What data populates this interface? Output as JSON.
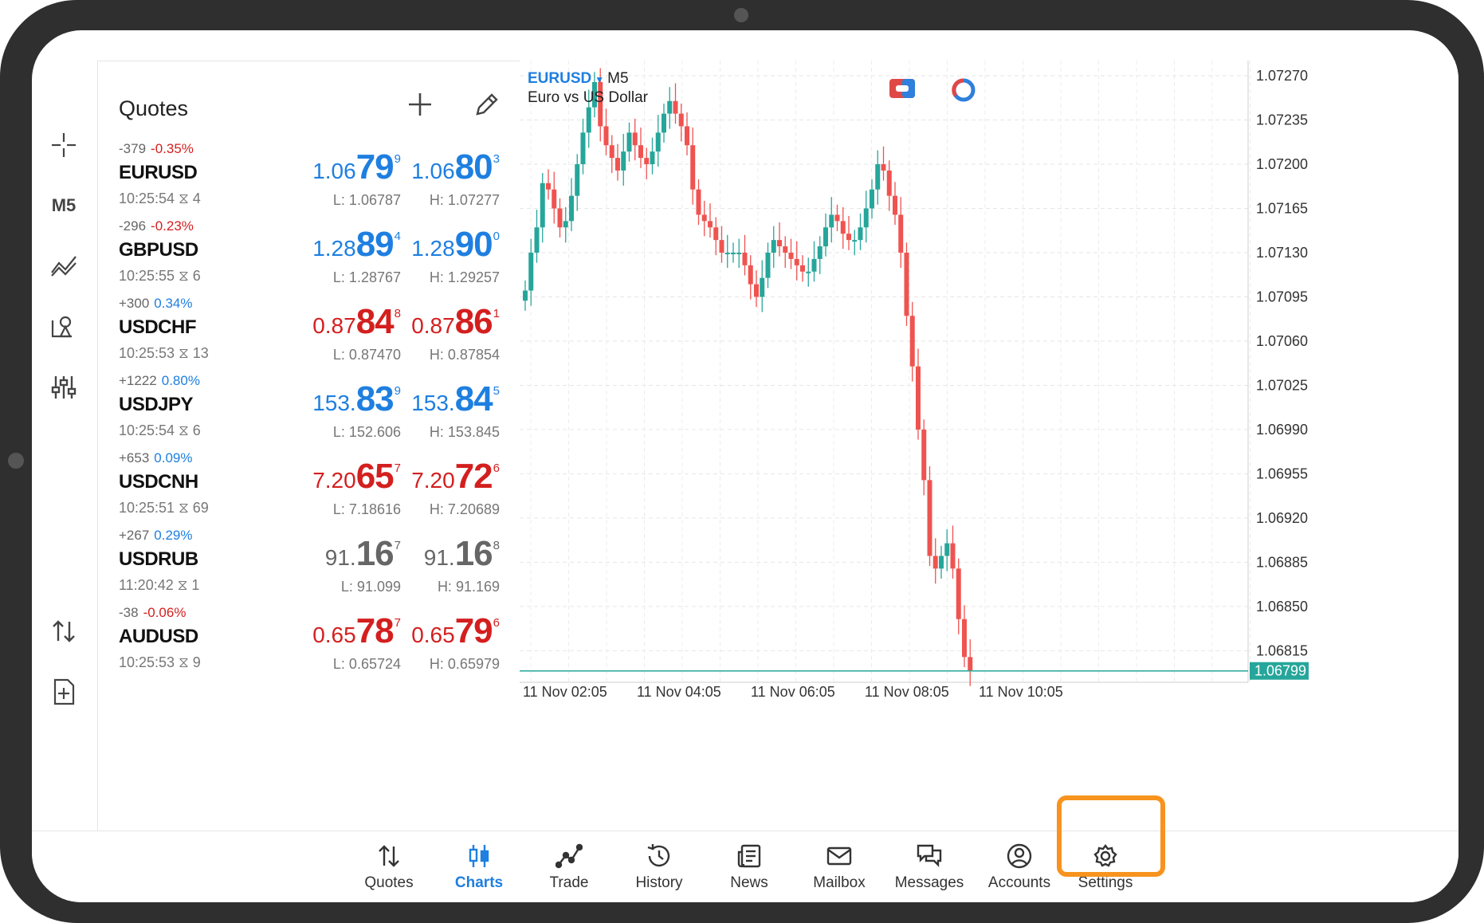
{
  "left_toolbar": {
    "timeframe": "M5"
  },
  "quotes": {
    "title": "Quotes",
    "rows": [
      {
        "change": "-379",
        "pct": "-0.35%",
        "pct_color": "red",
        "symbol": "EURUSD",
        "time": "10:25:54",
        "spread": "4",
        "bid_small": "1.06",
        "bid_big": "79",
        "bid_sup": "9",
        "ask_small": "1.06",
        "ask_big": "80",
        "ask_sup": "3",
        "color": "blue",
        "low": "L: 1.06787",
        "high": "H: 1.07277"
      },
      {
        "change": "-296",
        "pct": "-0.23%",
        "pct_color": "red",
        "symbol": "GBPUSD",
        "time": "10:25:55",
        "spread": "6",
        "bid_small": "1.28",
        "bid_big": "89",
        "bid_sup": "4",
        "ask_small": "1.28",
        "ask_big": "90",
        "ask_sup": "0",
        "color": "blue",
        "low": "L: 1.28767",
        "high": "H: 1.29257"
      },
      {
        "change": "+300",
        "pct": "0.34%",
        "pct_color": "blue",
        "symbol": "USDCHF",
        "time": "10:25:53",
        "spread": "13",
        "bid_small": "0.87",
        "bid_big": "84",
        "bid_sup": "8",
        "ask_small": "0.87",
        "ask_big": "86",
        "ask_sup": "1",
        "color": "red",
        "low": "L: 0.87470",
        "high": "H: 0.87854"
      },
      {
        "change": "+1222",
        "pct": "0.80%",
        "pct_color": "blue",
        "symbol": "USDJPY",
        "time": "10:25:54",
        "spread": "6",
        "bid_small": "153.",
        "bid_big": "83",
        "bid_sup": "9",
        "ask_small": "153.",
        "ask_big": "84",
        "ask_sup": "5",
        "color": "blue",
        "low": "L: 152.606",
        "high": "H: 153.845"
      },
      {
        "change": "+653",
        "pct": "0.09%",
        "pct_color": "blue",
        "symbol": "USDCNH",
        "time": "10:25:51",
        "spread": "69",
        "bid_small": "7.20",
        "bid_big": "65",
        "bid_sup": "7",
        "ask_small": "7.20",
        "ask_big": "72",
        "ask_sup": "6",
        "color": "red",
        "low": "L: 7.18616",
        "high": "H: 7.20689"
      },
      {
        "change": "+267",
        "pct": "0.29%",
        "pct_color": "blue",
        "symbol": "USDRUB",
        "time": "11:20:42",
        "spread": "1",
        "bid_small": "91.",
        "bid_big": "16",
        "bid_sup": "7",
        "ask_small": "91.",
        "ask_big": "16",
        "ask_sup": "8",
        "color": "gray",
        "low": "L: 91.099",
        "high": "H: 91.169"
      },
      {
        "change": "-38",
        "pct": "-0.06%",
        "pct_color": "red",
        "symbol": "AUDUSD",
        "time": "10:25:53",
        "spread": "9",
        "bid_small": "0.65",
        "bid_big": "78",
        "bid_sup": "7",
        "ask_small": "0.65",
        "ask_big": "79",
        "ask_sup": "6",
        "color": "red",
        "low": "L: 0.65724",
        "high": "H: 0.65979"
      }
    ]
  },
  "chart": {
    "symbol": "EURUSD",
    "timeframe": "M5",
    "description": "Euro vs US Dollar",
    "price_labels": [
      "1.07270",
      "1.07235",
      "1.07200",
      "1.07165",
      "1.07130",
      "1.07095",
      "1.07060",
      "1.07025",
      "1.06990",
      "1.06955",
      "1.06920",
      "1.06885",
      "1.06850",
      "1.06815"
    ],
    "current_price": "1.06799",
    "time_labels": [
      "11 Nov 02:05",
      "11 Nov 04:05",
      "11 Nov 06:05",
      "11 Nov 08:05",
      "11 Nov 10:05"
    ],
    "colors": {
      "bull": "#26a69a",
      "bear": "#ef5350",
      "price_line": "#26a69a"
    }
  },
  "chart_data": {
    "type": "candlestick",
    "symbol": "EURUSD",
    "timeframe": "M5",
    "ylim": [
      1.0679,
      1.07282
    ],
    "x_ticks": [
      "11 Nov 02:05",
      "11 Nov 04:05",
      "11 Nov 06:05",
      "11 Nov 08:05",
      "11 Nov 10:05"
    ],
    "current_price": 1.06799,
    "close_path": [
      1.071,
      1.0713,
      1.0715,
      1.07185,
      1.0718,
      1.07165,
      1.0715,
      1.07155,
      1.07175,
      1.072,
      1.07225,
      1.07245,
      1.07265,
      1.0723,
      1.07215,
      1.07205,
      1.07195,
      1.0721,
      1.07225,
      1.07215,
      1.07205,
      1.072,
      1.0721,
      1.07225,
      1.0724,
      1.0725,
      1.0724,
      1.0723,
      1.07215,
      1.0718,
      1.0716,
      1.07155,
      1.0715,
      1.0714,
      1.0713,
      1.0713,
      1.0713,
      1.0713,
      1.0712,
      1.07105,
      1.07095,
      1.0711,
      1.0713,
      1.0714,
      1.07135,
      1.0713,
      1.07125,
      1.0712,
      1.07115,
      1.07115,
      1.07125,
      1.07135,
      1.0715,
      1.0716,
      1.07155,
      1.07145,
      1.0714,
      1.0714,
      1.0715,
      1.07165,
      1.0718,
      1.072,
      1.07195,
      1.07175,
      1.0716,
      1.0713,
      1.0708,
      1.0704,
      1.0699,
      1.0695,
      1.0689,
      1.0688,
      1.0689,
      1.069,
      1.0688,
      1.0684,
      1.0681,
      1.06799
    ]
  }
}
